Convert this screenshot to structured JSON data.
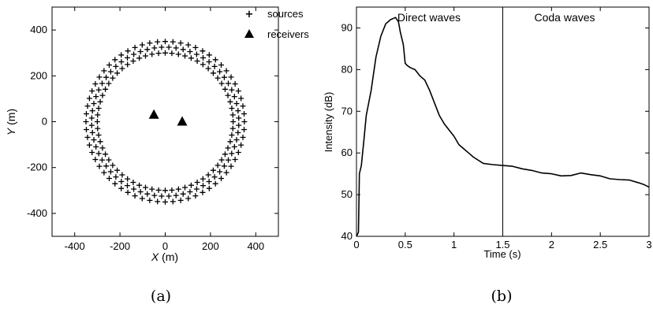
{
  "chart_data": [
    {
      "type": "scatter",
      "panel_caption": "(a)",
      "xlabel_var": "X",
      "xlabel_unit": " (m)",
      "ylabel_var": "Y",
      "ylabel_unit": " (m)",
      "xlim": [
        -500,
        500
      ],
      "ylim": [
        -500,
        500
      ],
      "xticks": [
        -400,
        -200,
        0,
        200,
        400
      ],
      "yticks": [
        -400,
        -200,
        0,
        200,
        400
      ],
      "grid": false,
      "legend_position": "top-right, outside",
      "series": [
        {
          "name": "sources",
          "marker": "plus",
          "layout": "ring",
          "ring_count": 3,
          "ring_radii_m": [
            300,
            325,
            350
          ],
          "points_per_ring": 64
        },
        {
          "name": "receivers",
          "marker": "triangle",
          "points": [
            [
              -50,
              30
            ],
            [
              75,
              0
            ]
          ]
        }
      ]
    },
    {
      "type": "line",
      "panel_caption": "(b)",
      "xlabel": "Time (s)",
      "ylabel": "Intensity (dB)",
      "xlim": [
        0,
        3
      ],
      "ylim": [
        40,
        95
      ],
      "xticks": [
        0,
        0.5,
        1,
        1.5,
        2,
        2.5,
        3
      ],
      "yticks": [
        40,
        50,
        60,
        70,
        80,
        90
      ],
      "grid": false,
      "divider_x": 1.5,
      "regions": [
        {
          "label": "Direct waves"
        },
        {
          "label": "Coda waves"
        }
      ],
      "series": [
        {
          "x": [
            0,
            0.02,
            0.03,
            0.05,
            0.08,
            0.1,
            0.15,
            0.2,
            0.25,
            0.3,
            0.35,
            0.4,
            0.43,
            0.45,
            0.48,
            0.5,
            0.52,
            0.55,
            0.6,
            0.65,
            0.7,
            0.75,
            0.8,
            0.85,
            0.9,
            0.95,
            1.0,
            1.05,
            1.1,
            1.15,
            1.2,
            1.3,
            1.4,
            1.5,
            1.6,
            1.7,
            1.8,
            1.9,
            2.0,
            2.1,
            2.2,
            2.3,
            2.4,
            2.5,
            2.6,
            2.7,
            2.8,
            2.9,
            2.95,
            3.0
          ],
          "y": [
            40,
            41,
            55,
            57,
            64,
            69,
            75,
            83,
            88,
            91,
            92,
            92.5,
            91.5,
            89,
            86,
            81.5,
            81,
            80.5,
            80,
            78.5,
            77.5,
            75,
            72,
            69,
            67,
            65.5,
            64,
            62,
            61,
            60,
            59,
            57.5,
            57.2,
            57,
            56.8,
            56.2,
            55.8,
            55.2,
            55,
            54.5,
            54.6,
            55.2,
            54.8,
            54.5,
            53.8,
            53.6,
            53.5,
            52.8,
            52.4,
            51.8
          ]
        }
      ]
    }
  ],
  "legend": {
    "sources_label": "sources",
    "receivers_label": "receivers"
  }
}
